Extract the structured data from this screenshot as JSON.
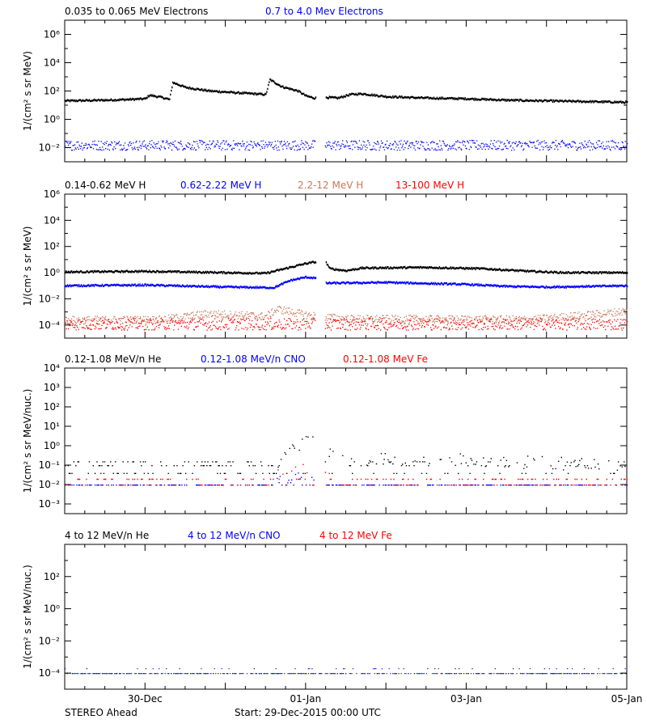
{
  "footer": {
    "spacecraft": "STEREO Ahead",
    "start": "Start: 29-Dec-2015 00:00 UTC"
  },
  "x_axis": {
    "range_days": [
      0,
      7
    ],
    "ticks": [
      {
        "day": 1,
        "label": "30-Dec"
      },
      {
        "day": 3,
        "label": "01-Jan"
      },
      {
        "day": 5,
        "label": "03-Jan"
      },
      {
        "day": 7,
        "label": "05-Jan"
      }
    ],
    "gap_days": [
      3.12,
      3.24
    ]
  },
  "colors": {
    "black": "#000000",
    "blue": "#0000ff",
    "tan": "#c8785a",
    "red": "#ff0000"
  },
  "chart_data": [
    {
      "type": "scatter",
      "ylabel": "1/(cm² s sr MeV)",
      "ylim_log10": [
        -3,
        7
      ],
      "yticks_exp": [
        -2,
        0,
        2,
        4,
        6
      ],
      "legend": [
        {
          "label": "0.035 to 0.065 MeV Electrons",
          "color": "#000000"
        },
        {
          "label": "0.7 to 4.0 Mev Electrons",
          "color": "#0000ff"
        }
      ],
      "series": [
        {
          "name": "0.035 to 0.065 MeV Electrons",
          "color": "#000000",
          "style": "line",
          "points": [
            [
              0,
              1.3
            ],
            [
              0.5,
              1.35
            ],
            [
              0.8,
              1.4
            ],
            [
              1.0,
              1.45
            ],
            [
              1.05,
              1.7
            ],
            [
              1.2,
              1.55
            ],
            [
              1.3,
              1.4
            ],
            [
              1.34,
              2.6
            ],
            [
              1.5,
              2.25
            ],
            [
              1.8,
              2.0
            ],
            [
              2.2,
              1.85
            ],
            [
              2.5,
              1.75
            ],
            [
              2.55,
              2.8
            ],
            [
              2.7,
              2.3
            ],
            [
              2.9,
              2.0
            ],
            [
              3.0,
              1.65
            ],
            [
              3.1,
              1.5
            ],
            [
              3.25,
              1.55
            ],
            [
              3.4,
              1.5
            ],
            [
              3.55,
              1.75
            ],
            [
              3.7,
              1.8
            ],
            [
              4.0,
              1.6
            ],
            [
              4.5,
              1.5
            ],
            [
              5.0,
              1.45
            ],
            [
              5.5,
              1.35
            ],
            [
              6.0,
              1.3
            ],
            [
              6.5,
              1.25
            ],
            [
              7.0,
              1.2
            ]
          ]
        },
        {
          "name": "0.7 to 4.0 Mev Electrons",
          "color": "#0000ff",
          "style": "noise",
          "points": [
            [
              0,
              -1.8
            ],
            [
              7,
              -1.8
            ]
          ],
          "spread": 0.35
        }
      ]
    },
    {
      "type": "scatter",
      "ylabel": "1/(cm² s sr MeV)",
      "ylim_log10": [
        -5,
        6
      ],
      "yticks_exp": [
        -4,
        -2,
        0,
        2,
        4,
        6
      ],
      "legend": [
        {
          "label": "0.14-0.62 MeV H",
          "color": "#000000"
        },
        {
          "label": "0.62-2.22 MeV H",
          "color": "#0000ff"
        },
        {
          "label": "2.2-12 MeV H",
          "color": "#c8785a"
        },
        {
          "label": "13-100 MeV H",
          "color": "#ff0000"
        }
      ],
      "series": [
        {
          "name": "0.14-0.62 MeV H",
          "color": "#000000",
          "style": "line",
          "points": [
            [
              0,
              0.05
            ],
            [
              1.0,
              0.1
            ],
            [
              2.0,
              0.0
            ],
            [
              2.5,
              -0.05
            ],
            [
              2.8,
              0.4
            ],
            [
              3.0,
              0.7
            ],
            [
              3.1,
              0.8
            ],
            [
              3.25,
              0.75
            ],
            [
              3.3,
              0.3
            ],
            [
              3.5,
              0.15
            ],
            [
              3.7,
              0.35
            ],
            [
              4.5,
              0.4
            ],
            [
              5.2,
              0.3
            ],
            [
              5.8,
              0.1
            ],
            [
              6.2,
              0.0
            ],
            [
              7.0,
              0.0
            ]
          ]
        },
        {
          "name": "0.62-2.22 MeV H",
          "color": "#0000ff",
          "style": "line",
          "points": [
            [
              0,
              -1.0
            ],
            [
              1.0,
              -0.95
            ],
            [
              2.0,
              -1.1
            ],
            [
              2.6,
              -1.15
            ],
            [
              2.8,
              -0.6
            ],
            [
              3.0,
              -0.35
            ],
            [
              3.1,
              -0.4
            ],
            [
              3.25,
              -0.8
            ],
            [
              3.4,
              -0.8
            ],
            [
              4.0,
              -0.75
            ],
            [
              5.0,
              -0.9
            ],
            [
              5.5,
              -1.05
            ],
            [
              6.0,
              -1.1
            ],
            [
              7.0,
              -1.0
            ]
          ]
        },
        {
          "name": "2.2-12 MeV H",
          "color": "#c8785a",
          "style": "noise",
          "points": [
            [
              0,
              -3.6
            ],
            [
              1.2,
              -3.55
            ],
            [
              1.8,
              -3.1
            ],
            [
              2.5,
              -3.3
            ],
            [
              2.65,
              -2.75
            ],
            [
              3.0,
              -3.2
            ],
            [
              3.5,
              -3.5
            ],
            [
              5.8,
              -3.55
            ],
            [
              6.5,
              -3.2
            ],
            [
              7.0,
              -2.9
            ]
          ],
          "spread": 0.3
        },
        {
          "name": "13-100 MeV H",
          "color": "#ff0000",
          "style": "noise",
          "points": [
            [
              0,
              -3.9
            ],
            [
              7,
              -3.9
            ]
          ],
          "spread": 0.45
        }
      ]
    },
    {
      "type": "scatter",
      "ylabel": "1/(cm² s sr MeV/nuc.)",
      "ylim_log10": [
        -3.5,
        4
      ],
      "yticks_exp": [
        -3,
        -2,
        -1,
        0,
        1,
        2,
        3,
        4
      ],
      "legend": [
        {
          "label": "0.12-1.08 MeV/n He",
          "color": "#000000"
        },
        {
          "label": "0.12-1.08 MeV/n CNO",
          "color": "#0000ff"
        },
        {
          "label": "0.12-1.08 MeV Fe",
          "color": "#ff0000"
        }
      ],
      "series": [
        {
          "name": "0.12-1.08 MeV/n He",
          "color": "#000000",
          "style": "quantized",
          "levels": [
            -1.4,
            -1.0,
            -0.8
          ],
          "points": [
            [
              0,
              -1.4
            ],
            [
              7,
              -1.4
            ]
          ],
          "burst": [
            [
              2.65,
              -0.9
            ],
            [
              2.8,
              -0.2
            ],
            [
              3.0,
              0.2
            ],
            [
              3.1,
              0.3
            ],
            [
              3.2,
              -0.2
            ],
            [
              3.4,
              -0.6
            ],
            [
              5.5,
              -0.8
            ],
            [
              7,
              -1.0
            ]
          ]
        },
        {
          "name": "0.12-1.08 MeV/n CNO",
          "color": "#0000ff",
          "style": "quantized",
          "levels": [
            -2.0
          ],
          "points": [
            [
              0,
              -2.0
            ],
            [
              7,
              -2.0
            ]
          ],
          "burst": [
            [
              2.6,
              -1.6
            ],
            [
              3.2,
              -1.4
            ]
          ]
        },
        {
          "name": "0.12-1.08 MeV Fe",
          "color": "#ff0000",
          "style": "quantized",
          "levels": [
            -2.0,
            -1.7
          ],
          "points": [
            [
              0,
              -2.0
            ],
            [
              7,
              -2.0
            ]
          ],
          "burst": [
            [
              2.6,
              -1.3
            ],
            [
              3.05,
              -1.1
            ],
            [
              3.25,
              -1.3
            ],
            [
              3.3,
              -1.7
            ]
          ]
        }
      ]
    },
    {
      "type": "scatter",
      "ylabel": "1/(cm² s sr MeV/nuc.)",
      "ylim_log10": [
        -5,
        4
      ],
      "yticks_exp": [
        -4,
        -2,
        0,
        2
      ],
      "legend": [
        {
          "label": "4 to 12 MeV/n He",
          "color": "#000000"
        },
        {
          "label": "4 to 12 MeV/n CNO",
          "color": "#0000ff"
        },
        {
          "label": "4 to 12 MeV Fe",
          "color": "#ff0000"
        }
      ],
      "series": [
        {
          "name": "4 to 12 MeV/n He",
          "color": "#000000",
          "style": "sparse",
          "points": [
            [
              0,
              -4.0
            ],
            [
              7,
              -4.0
            ]
          ]
        },
        {
          "name": "4 to 12 MeV/n CNO",
          "color": "#0000ff",
          "style": "sparse",
          "points": [
            [
              0,
              -4.0
            ],
            [
              7,
              -4.0
            ]
          ]
        }
      ]
    }
  ]
}
